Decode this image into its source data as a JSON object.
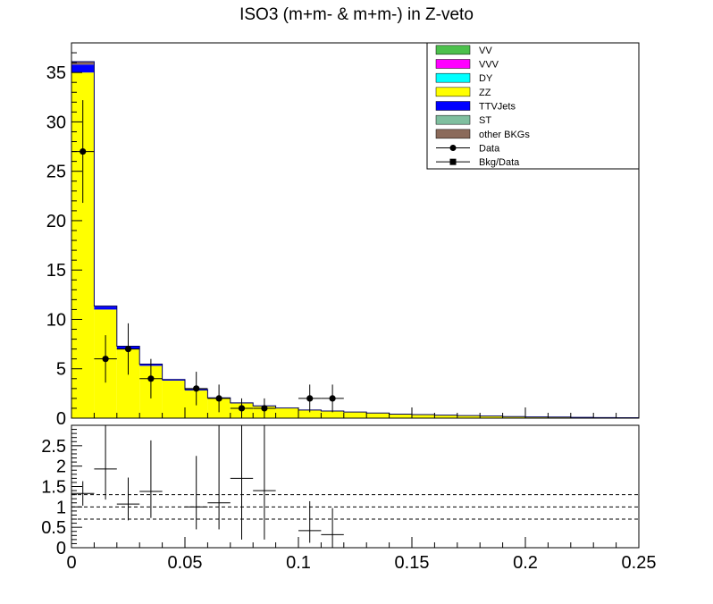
{
  "chart_data": [
    {
      "type": "stacked-histogram",
      "title": "ISO3 (m+m- & m+m-) in Z-veto",
      "xlim": [
        0,
        0.25
      ],
      "ylim": [
        0,
        38
      ],
      "bin_edges": [
        0,
        0.01,
        0.02,
        0.03,
        0.04,
        0.05,
        0.06,
        0.07,
        0.08,
        0.09,
        0.1,
        0.11,
        0.12,
        0.13,
        0.14,
        0.15,
        0.16,
        0.17,
        0.18,
        0.19,
        0.2,
        0.21,
        0.22,
        0.23,
        0.24,
        0.25
      ],
      "yticks": [
        0,
        5,
        10,
        15,
        20,
        25,
        30,
        35
      ],
      "stack": [
        {
          "name": "ZZ",
          "color": "#ffff00",
          "values": [
            35.0,
            11.0,
            7.0,
            5.3,
            3.8,
            2.8,
            2.0,
            1.5,
            1.2,
            1.0,
            0.8,
            0.7,
            0.6,
            0.5,
            0.4,
            0.35,
            0.3,
            0.25,
            0.2,
            0.15,
            0.12,
            0.1,
            0.08,
            0.06,
            0.05
          ]
        },
        {
          "name": "TTVJets",
          "color": "#0000ff",
          "values": [
            0.8,
            0.3,
            0.25,
            0.15,
            0.1,
            0.08,
            0.06,
            0.05,
            0.04,
            0.03,
            0.03,
            0.02,
            0.02,
            0.02,
            0.01,
            0.01,
            0.01,
            0.01,
            0.01,
            0.01,
            0.01,
            0.01,
            0.0,
            0.0,
            0.0
          ]
        },
        {
          "name": "other BKGs",
          "color": "#8b6a5a",
          "values": [
            0.3,
            0.05,
            0.03,
            0.02,
            0.01,
            0.01,
            0.0,
            0.0,
            0.0,
            0.0,
            0.0,
            0.0,
            0.0,
            0.0,
            0.0,
            0.0,
            0.0,
            0.0,
            0.0,
            0.0,
            0.0,
            0.0,
            0.0,
            0.0,
            0.0
          ]
        }
      ],
      "data_points": {
        "name": "Data",
        "x": [
          0.005,
          0.015,
          0.025,
          0.035,
          0.055,
          0.065,
          0.075,
          0.085,
          0.105,
          0.115
        ],
        "y": [
          27,
          6,
          7,
          4,
          3,
          2,
          1,
          1,
          2,
          2
        ],
        "err_low": [
          5.2,
          2.4,
          2.6,
          2.0,
          1.7,
          1.4,
          1.0,
          1.0,
          1.4,
          1.4
        ],
        "err_high": [
          5.2,
          2.4,
          2.6,
          2.0,
          1.7,
          1.4,
          1.0,
          1.0,
          1.4,
          1.4
        ]
      }
    },
    {
      "type": "ratio-scatter",
      "xlim": [
        0,
        0.25
      ],
      "ylim": [
        0,
        3.0
      ],
      "xticks": [
        0,
        0.05,
        0.1,
        0.15,
        0.2,
        0.25
      ],
      "xtick_labels": [
        "0",
        "0.05",
        "0.1",
        "0.15",
        "0.2",
        "0.25"
      ],
      "yticks": [
        0,
        0.5,
        1,
        1.5,
        2,
        2.5
      ],
      "ytick_labels": [
        "0",
        "0.5",
        "1",
        "1.5",
        "2",
        "2.5"
      ],
      "reference_lines": [
        0.7,
        1.0,
        1.3
      ],
      "points": {
        "name": "Bkg/Data",
        "x": [
          0.005,
          0.015,
          0.025,
          0.035,
          0.055,
          0.065,
          0.075,
          0.085,
          0.105,
          0.115
        ],
        "y": [
          1.33,
          1.93,
          1.07,
          1.38,
          1.0,
          1.1,
          1.7,
          1.4,
          0.42,
          0.32
        ],
        "err_low": [
          0.3,
          0.75,
          0.4,
          0.65,
          0.55,
          0.65,
          1.5,
          1.2,
          0.3,
          0.32
        ],
        "err_high": [
          0.3,
          1.5,
          0.65,
          1.25,
          1.25,
          2.0,
          3.0,
          2.5,
          0.72,
          0.65
        ]
      }
    }
  ],
  "legend": [
    {
      "label": "VV",
      "color": "#4cc04c",
      "kind": "box"
    },
    {
      "label": "VVV",
      "color": "#ff00ff",
      "kind": "box"
    },
    {
      "label": "DY",
      "color": "#00ffff",
      "kind": "box"
    },
    {
      "label": "ZZ",
      "color": "#ffff00",
      "kind": "box"
    },
    {
      "label": "TTVJets",
      "color": "#0000ff",
      "kind": "box"
    },
    {
      "label": "ST",
      "color": "#7fbf9f",
      "kind": "box"
    },
    {
      "label": "other BKGs",
      "color": "#8b6a5a",
      "kind": "box"
    },
    {
      "label": "Data",
      "color": "#000000",
      "kind": "marker-circle"
    },
    {
      "label": "Bkg/Data",
      "color": "#000000",
      "kind": "marker-square"
    }
  ]
}
